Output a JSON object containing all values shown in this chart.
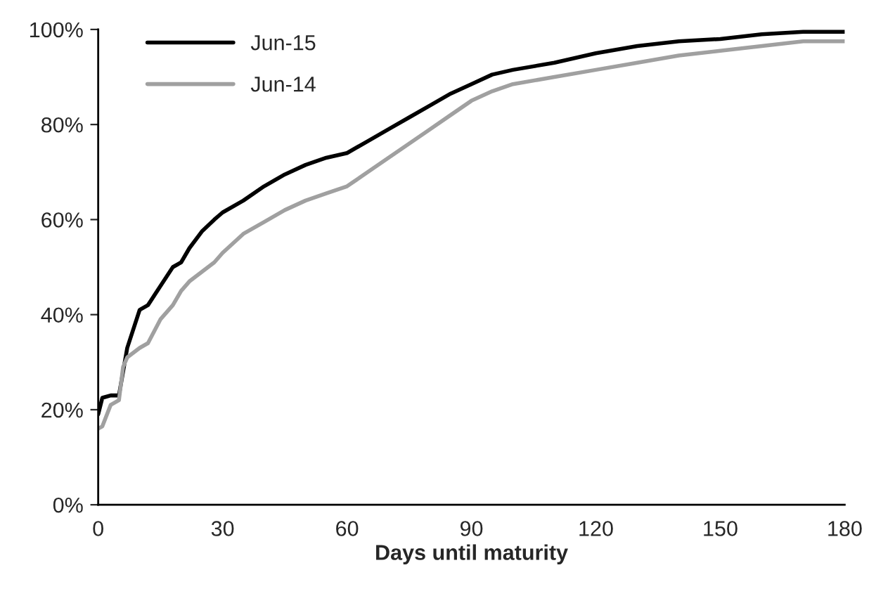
{
  "chart_data": {
    "type": "line",
    "xlabel": "Days until maturity",
    "x": [
      0,
      1,
      3,
      5,
      6,
      7,
      10,
      12,
      15,
      18,
      20,
      22,
      25,
      28,
      30,
      35,
      40,
      45,
      50,
      55,
      60,
      65,
      70,
      75,
      80,
      85,
      90,
      95,
      100,
      110,
      120,
      130,
      140,
      150,
      160,
      170,
      180
    ],
    "series": [
      {
        "name": "Jun-15",
        "color": "#000000",
        "values": [
          19,
          22.5,
          23,
          23,
          28,
          33,
          41,
          42,
          46,
          50,
          51,
          54,
          57.5,
          60,
          61.5,
          64,
          67,
          69.5,
          71.5,
          73,
          74,
          76.5,
          79,
          81.5,
          84,
          86.5,
          88.5,
          90.5,
          91.5,
          93,
          95,
          96.5,
          97.5,
          98,
          99,
          99.5,
          99.5
        ]
      },
      {
        "name": "Jun-14",
        "color": "#a0a0a0",
        "values": [
          16,
          16.5,
          21,
          22,
          29,
          31,
          33,
          34,
          39,
          42,
          45,
          47,
          49,
          51,
          53,
          57,
          59.5,
          62,
          64,
          65.5,
          67,
          70,
          73,
          76,
          79,
          82,
          85,
          87,
          88.5,
          90,
          91.5,
          93,
          94.5,
          95.5,
          96.5,
          97.5,
          97.5
        ]
      }
    ],
    "xlim": [
      0,
      180
    ],
    "xticks": [
      0,
      30,
      60,
      90,
      120,
      150,
      180
    ],
    "ylim": [
      0,
      100
    ],
    "yticks": [
      {
        "value": 0,
        "label": "0%"
      },
      {
        "value": 20,
        "label": "20%"
      },
      {
        "value": 40,
        "label": "40%"
      },
      {
        "value": 60,
        "label": "60%"
      },
      {
        "value": 80,
        "label": "80%"
      },
      {
        "value": 100,
        "label": "100%"
      }
    ],
    "grid": false,
    "legend": "top left",
    "line_style": "solid"
  }
}
